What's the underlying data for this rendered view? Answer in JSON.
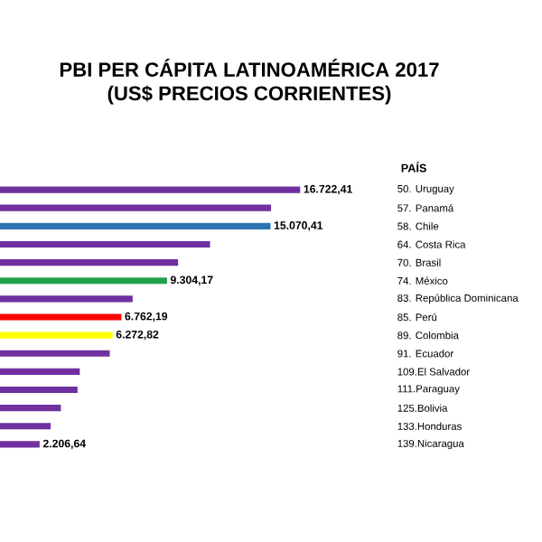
{
  "chart_data": {
    "type": "bar",
    "orientation": "horizontal",
    "title": "PBI PER CÁPITA LATINOAMÉRICA 2017",
    "subtitle": "(US$ PRECIOS CORRIENTES)",
    "ylabel": "PAÍS",
    "categories": [
      "50. Uruguay",
      "57. Panamá",
      "58. Chile",
      "64. Costa Rica",
      "70. Brasil",
      "74. México",
      "83. República Dominicana",
      "85. Perú",
      "89. Colombia",
      "91. Ecuador",
      "109.El Salvador",
      "111.Paraguay",
      "125.Bolivia",
      "133.Honduras",
      "139.Nicaragua"
    ],
    "values": [
      16722.41,
      15100,
      15070.41,
      11700,
      9920,
      9304.17,
      7390,
      6762.19,
      6272.82,
      6115,
      4445,
      4320,
      3390,
      2825,
      2206.64
    ],
    "value_labels": [
      "16.722,41",
      null,
      "15.070,41",
      null,
      null,
      "9.304,17",
      null,
      "6.762,19",
      "6.272,82",
      null,
      null,
      null,
      null,
      null,
      "2.206,64"
    ],
    "colors": [
      "#7030a0",
      "#7030a0",
      "#2e75b6",
      "#7030a0",
      "#7030a0",
      "#22a04b",
      "#7030a0",
      "#ff0000",
      "#ffff00",
      "#7030a0",
      "#7030a0",
      "#7030a0",
      "#7030a0",
      "#7030a0",
      "#7030a0"
    ]
  }
}
